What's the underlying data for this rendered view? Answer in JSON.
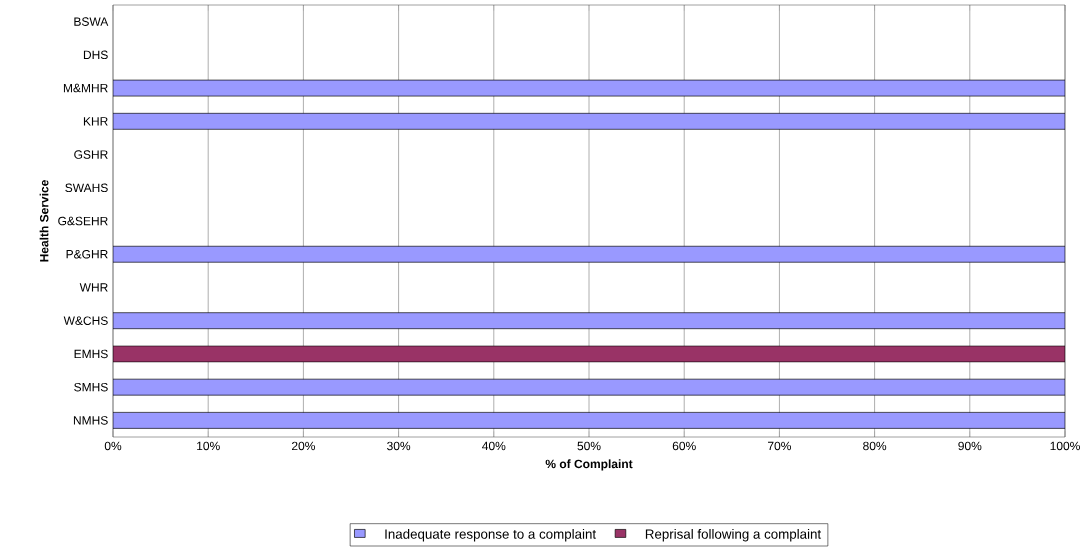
{
  "chart_data": {
    "type": "bar",
    "orientation": "horizontal",
    "stacked": true,
    "xlabel": "% of Complaint",
    "ylabel": "Health Service",
    "categories": [
      "BSWA",
      "DHS",
      "M&MHR",
      "KHR",
      "GSHR",
      "SWAHS",
      "G&SEHR",
      "P&GHR",
      "WHR",
      "W&CHS",
      "EMHS",
      "SMHS",
      "NMHS"
    ],
    "series": [
      {
        "name": "Inadequate response to a complaint",
        "color": "#9999ff",
        "values": [
          0,
          0,
          100,
          100,
          0,
          0,
          0,
          100,
          0,
          100,
          0,
          100,
          100
        ]
      },
      {
        "name": "Reprisal following a complaint",
        "color": "#993366",
        "values": [
          0,
          0,
          0,
          0,
          0,
          0,
          0,
          0,
          0,
          0,
          100,
          0,
          0
        ]
      }
    ],
    "xlim": [
      0,
      100
    ],
    "xticks": [
      {
        "value": 0,
        "label": "0%"
      },
      {
        "value": 10,
        "label": "10%"
      },
      {
        "value": 20,
        "label": "20%"
      },
      {
        "value": 30,
        "label": "30%"
      },
      {
        "value": 40,
        "label": "40%"
      },
      {
        "value": 50,
        "label": "50%"
      },
      {
        "value": 60,
        "label": "60%"
      },
      {
        "value": 70,
        "label": "70%"
      },
      {
        "value": 80,
        "label": "80%"
      },
      {
        "value": 90,
        "label": "90%"
      },
      {
        "value": 100,
        "label": "100%"
      }
    ],
    "grid": "x",
    "legend": "bottom"
  }
}
